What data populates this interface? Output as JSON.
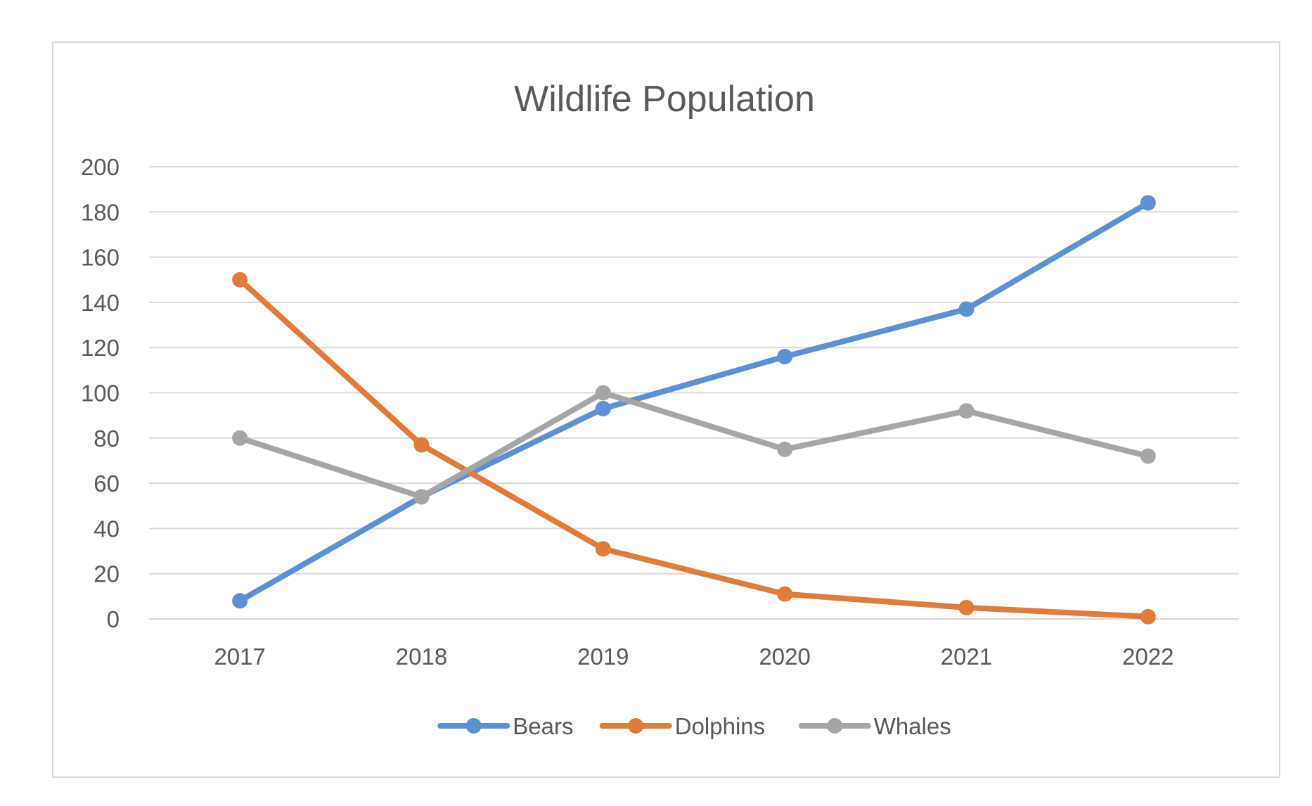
{
  "chart_data": {
    "type": "line",
    "title": "Wildlife Population",
    "xlabel": "",
    "ylabel": "",
    "categories": [
      "2017",
      "2018",
      "2019",
      "2020",
      "2021",
      "2022"
    ],
    "ylim": [
      0,
      200
    ],
    "yticks": [
      0,
      20,
      40,
      60,
      80,
      100,
      120,
      140,
      160,
      180,
      200
    ],
    "grid": true,
    "legend_position": "bottom",
    "series": [
      {
        "name": "Bears",
        "color": "#5B8FD6",
        "values": [
          8,
          54,
          93,
          116,
          137,
          184
        ]
      },
      {
        "name": "Dolphins",
        "color": "#E07B39",
        "values": [
          150,
          77,
          31,
          11,
          5,
          1
        ]
      },
      {
        "name": "Whales",
        "color": "#A5A5A5",
        "values": [
          80,
          54,
          100,
          75,
          92,
          72
        ]
      }
    ]
  }
}
